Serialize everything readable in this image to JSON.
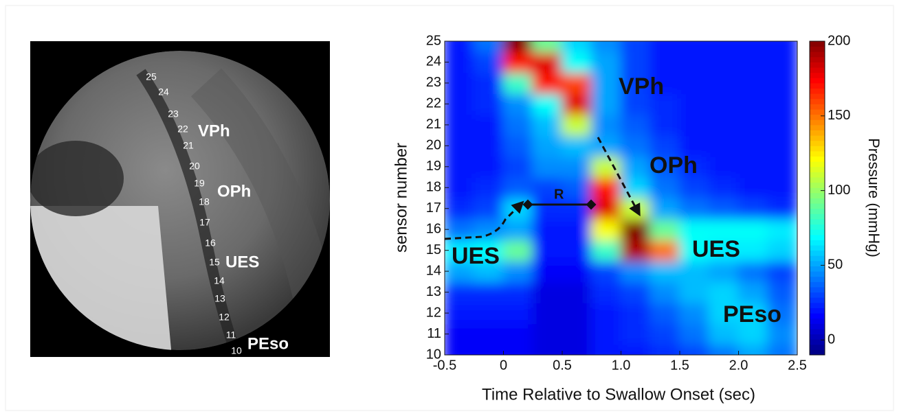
{
  "xray": {
    "sensor_labels": [
      "25",
      "24",
      "23",
      "22",
      "21",
      "20",
      "19",
      "18",
      "17",
      "16",
      "15",
      "14",
      "13",
      "12",
      "11",
      "10"
    ],
    "region_labels": [
      "VPh",
      "OPh",
      "UES",
      "PEso"
    ]
  },
  "chart_data": {
    "type": "heatmap",
    "xlabel": "Time Relative to Swallow Onset (sec)",
    "ylabel": "sensor number",
    "colorbar_label": "Pressure (mmHg)",
    "colormap": "jet",
    "xlim": [
      -0.5,
      2.5
    ],
    "xticks": [
      -0.5,
      0,
      0.5,
      {
        "value": 1,
        "label": "1.0"
      },
      1.5,
      {
        "value": 2,
        "label": "2.0"
      },
      2.5
    ],
    "ylim": [
      10,
      25
    ],
    "yticks": [
      10,
      11,
      12,
      13,
      14,
      15,
      16,
      17,
      18,
      19,
      20,
      21,
      22,
      23,
      24,
      25
    ],
    "clim": [
      -10,
      200
    ],
    "cticks": [
      0,
      50,
      100,
      150,
      200
    ],
    "x": [
      -0.375,
      -0.125,
      0.125,
      0.375,
      0.625,
      0.875,
      1.125,
      1.375,
      1.625,
      1.875,
      2.125,
      2.375
    ],
    "y": [
      10,
      11,
      12,
      13,
      14,
      15,
      16,
      17,
      18,
      19,
      20,
      21,
      22,
      23,
      24,
      25
    ],
    "values": [
      [
        15,
        15,
        15,
        10,
        10,
        20,
        20,
        25,
        30,
        40,
        50,
        40
      ],
      [
        15,
        15,
        15,
        10,
        10,
        20,
        25,
        30,
        40,
        55,
        60,
        45
      ],
      [
        20,
        20,
        20,
        10,
        10,
        20,
        25,
        35,
        45,
        60,
        60,
        40
      ],
      [
        25,
        25,
        25,
        10,
        10,
        25,
        30,
        45,
        55,
        60,
        50,
        35
      ],
      [
        50,
        55,
        45,
        15,
        15,
        30,
        45,
        55,
        55,
        50,
        40,
        30
      ],
      [
        65,
        70,
        90,
        20,
        20,
        80,
        190,
        150,
        70,
        65,
        65,
        60
      ],
      [
        40,
        45,
        50,
        20,
        20,
        120,
        200,
        90,
        70,
        70,
        70,
        65
      ],
      [
        25,
        30,
        60,
        25,
        25,
        180,
        110,
        50,
        40,
        35,
        30,
        25
      ],
      [
        20,
        25,
        35,
        30,
        35,
        170,
        60,
        40,
        30,
        25,
        20,
        20
      ],
      [
        20,
        20,
        30,
        45,
        45,
        110,
        50,
        35,
        25,
        20,
        20,
        20
      ],
      [
        20,
        20,
        35,
        50,
        55,
        50,
        40,
        30,
        20,
        20,
        20,
        20
      ],
      [
        20,
        20,
        40,
        55,
        110,
        45,
        35,
        25,
        20,
        20,
        20,
        20
      ],
      [
        20,
        25,
        45,
        70,
        180,
        50,
        30,
        25,
        20,
        20,
        20,
        20
      ],
      [
        20,
        25,
        80,
        170,
        160,
        50,
        30,
        20,
        20,
        20,
        20,
        20
      ],
      [
        20,
        30,
        170,
        180,
        70,
        50,
        30,
        20,
        20,
        20,
        20,
        20
      ],
      [
        20,
        40,
        200,
        90,
        60,
        45,
        30,
        20,
        20,
        20,
        20,
        20
      ]
    ],
    "annotations": [
      "VPh",
      "OPh",
      "UES",
      "UES",
      "PEso",
      "R"
    ]
  }
}
